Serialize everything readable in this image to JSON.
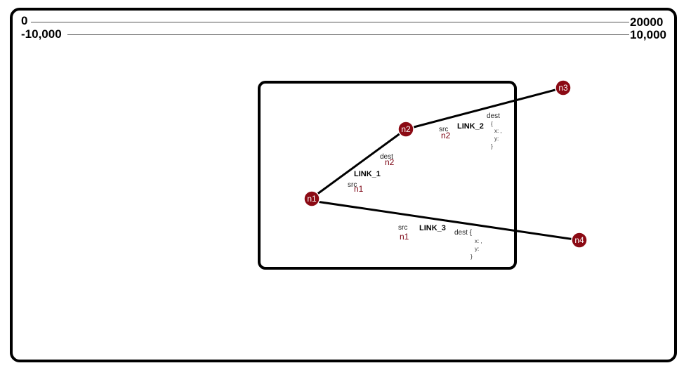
{
  "ruler": {
    "top_left": "0",
    "top_right": "20000",
    "second_left": "-10,000",
    "second_right": "10,000"
  },
  "colors": {
    "node_fill": "#8b0a14",
    "node_stroke": "#ffffff",
    "link_stroke": "#000000",
    "frame_stroke": "#000000",
    "node_ref_text": "#7a0010"
  },
  "nodes": [
    {
      "id": "n1",
      "label": "n1"
    },
    {
      "id": "n2",
      "label": "n2"
    },
    {
      "id": "n3",
      "label": "n3"
    },
    {
      "id": "n4",
      "label": "n4"
    }
  ],
  "links": [
    {
      "name": "LINK_1",
      "src_label": "src",
      "src_node": "n1",
      "dest_label": "dest",
      "dest_node": "n2"
    },
    {
      "name": "LINK_2",
      "src_label": "src",
      "src_node": "n2",
      "dest_label": "dest",
      "dest_lines": [
        "{",
        "x: ,",
        "y:",
        "}"
      ]
    },
    {
      "name": "LINK_3",
      "src_label": "src",
      "src_node": "n1",
      "dest_label": "dest {",
      "dest_lines": [
        "x: ,",
        "y:",
        "}"
      ]
    }
  ]
}
